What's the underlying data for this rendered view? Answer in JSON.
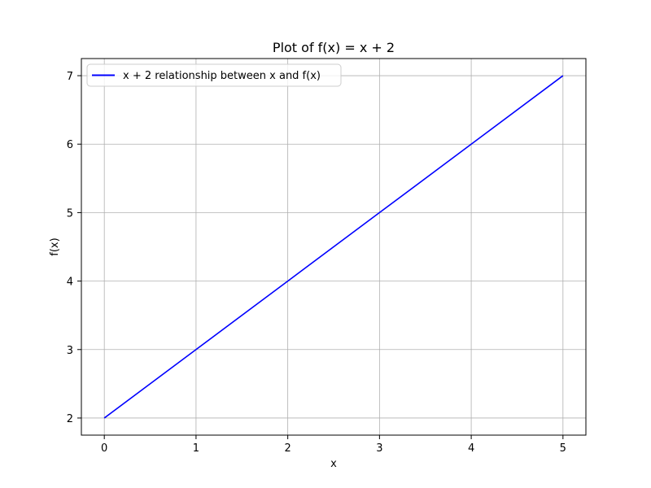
{
  "chart_data": {
    "type": "line",
    "title": "Plot of f(x) = x + 2",
    "xlabel": "x",
    "ylabel": "f(x)",
    "xlim": [
      -0.25,
      5.25
    ],
    "ylim": [
      1.75,
      7.25
    ],
    "xticks": [
      0,
      1,
      2,
      3,
      4,
      5
    ],
    "yticks": [
      2,
      3,
      4,
      5,
      6,
      7
    ],
    "grid": true,
    "legend_position": "top-left",
    "series": [
      {
        "name": "x + 2 relationship between x and f(x)",
        "color": "#0000ff",
        "x": [
          0,
          1,
          2,
          3,
          4,
          5
        ],
        "y": [
          2,
          3,
          4,
          5,
          6,
          7
        ]
      }
    ]
  }
}
